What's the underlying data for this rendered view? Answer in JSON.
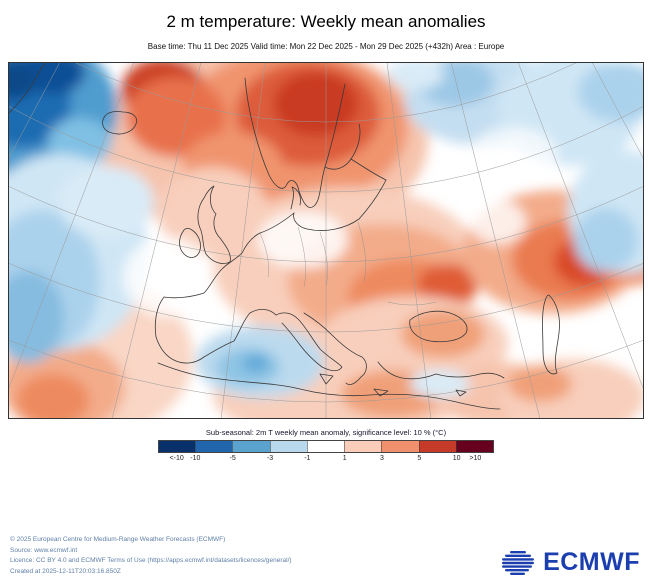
{
  "header": {
    "title": "2 m temperature: Weekly mean anomalies",
    "subtitle": "Base time: Thu 11 Dec 2025 Valid time: Mon 22 Dec 2025 - Mon 29 Dec 2025 (+432h) Area : Europe"
  },
  "legend": {
    "title": "Sub-seasonal: 2m T weekly mean anomaly, significance level: 10 % (°C)",
    "colorbar": {
      "colors": [
        "#08306b",
        "#2166ac",
        "#5ba3cf",
        "#b8d8ec",
        "#ffffff",
        "#f9cdb9",
        "#f0906c",
        "#c53a28",
        "#67001f"
      ],
      "labels": [
        "<-10",
        "-10",
        "-5",
        "-3",
        "-1",
        "1",
        "3",
        "5",
        "10",
        ">10"
      ]
    }
  },
  "footer": {
    "lines": [
      "© 2025 European Centre for Medium-Range Weather Forecasts (ECMWF)",
      "Source: www.ecmwf.int",
      "Licence: CC BY 4.0 and ECMWF Terms of Use (https://apps.ecmwf.int/datasets/licences/general/)",
      "Created at 2025-12-11T20:03:16.850Z"
    ],
    "logo_text": "ECMWF",
    "logo_color": "#1b3fae"
  },
  "chart_data": {
    "type": "heatmap",
    "title": "2 m temperature: Weekly mean anomalies",
    "variable": "Sub-seasonal: 2m T weekly mean anomaly",
    "significance_level": "10 %",
    "units": "°C",
    "area": "Europe",
    "base_time": "Thu 11 Dec 2025",
    "valid_time": "Mon 22 Dec 2025 - Mon 29 Dec 2025 (+432h)",
    "colorbar_levels": [
      -10,
      -5,
      -3,
      -1,
      1,
      3,
      5,
      10
    ],
    "colorbar_labels": [
      "<-10",
      "-10",
      "-5",
      "-3",
      "-1",
      "1",
      "3",
      "5",
      "10",
      ">10"
    ],
    "colorbar_colors": [
      "#08306b",
      "#2166ac",
      "#5ba3cf",
      "#b8d8ec",
      "#ffffff",
      "#f9cdb9",
      "#f0906c",
      "#c53a28",
      "#67001f"
    ],
    "legend_position": "bottom",
    "regions": [
      {
        "area": "far north-west corner (Greenland side of Atlantic)",
        "anomaly_c": "-5 to < -10 (strong cold)"
      },
      {
        "area": "Norwegian Sea, Iceland east, Scandinavia",
        "anomaly_c": "+3 to +10 (strong warm)"
      },
      {
        "area": "eastern Atlantic west of Ireland / Biscay",
        "anomaly_c": "-1 to -5 (cold)"
      },
      {
        "area": "Barents / far north-east and right edge",
        "anomaly_c": "-1 to -3 (weak cold)"
      },
      {
        "area": "central and eastern Europe, Ukraine, Black Sea",
        "anomaly_c": "+1 to +5 (warm)"
      },
      {
        "area": "Caspian / western Kazakhstan",
        "anomaly_c": "+3 to +10 (strong warm)"
      },
      {
        "area": "central Mediterranean",
        "anomaly_c": "-1 to -3 (weak cold)"
      },
      {
        "area": "Iberia and north-west Africa",
        "anomaly_c": "+1 to +5 (warm)"
      },
      {
        "area": "north Africa coast, Turkey, Middle East",
        "anomaly_c": "+1 to +3 (weak warm)"
      }
    ]
  }
}
